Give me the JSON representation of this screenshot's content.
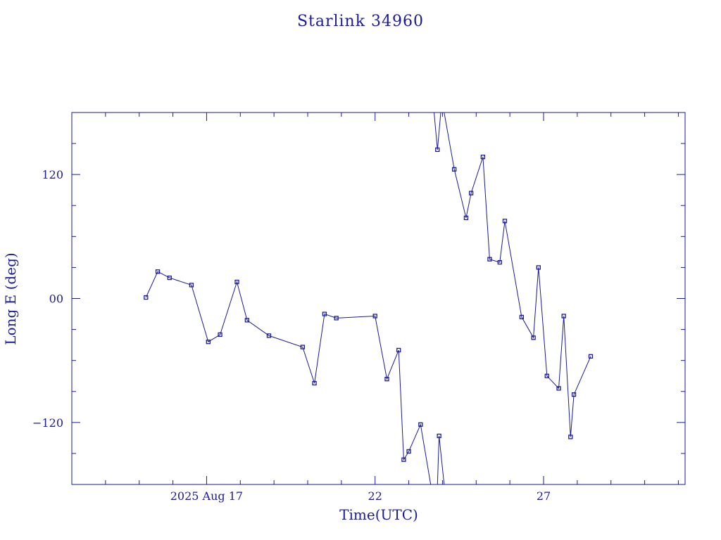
{
  "chart_data": {
    "type": "line",
    "title": "Starlink 34960",
    "xlabel": "Time(UTC)",
    "ylabel": "Long E (deg)",
    "x_tick_labels": [
      {
        "day": 17,
        "label": "2025 Aug 17"
      },
      {
        "day": 22,
        "label": "22"
      },
      {
        "day": 27,
        "label": "27"
      }
    ],
    "y_tick_labels": [
      {
        "value": 120,
        "label": "120"
      },
      {
        "value": 0,
        "label": "00"
      },
      {
        "value": -120,
        "label": "−120"
      }
    ],
    "xlim": [
      13.0,
      31.2
    ],
    "ylim": [
      -180,
      180
    ],
    "x_unit": "day of August 2025 (UTC)",
    "color": "#1a1a9a",
    "grid": false,
    "series": [
      {
        "points": [
          [
            15.2,
            1
          ],
          [
            15.55,
            26
          ],
          [
            15.9,
            20
          ],
          [
            16.55,
            13
          ],
          [
            17.05,
            -42
          ],
          [
            17.4,
            -35
          ],
          [
            17.9,
            16
          ],
          [
            18.2,
            -21
          ],
          [
            18.85,
            -36
          ],
          [
            19.85,
            -47
          ],
          [
            20.2,
            -82
          ],
          [
            20.5,
            -15
          ],
          [
            20.85,
            -19
          ],
          [
            22.0,
            -17
          ],
          [
            22.35,
            -78
          ],
          [
            22.7,
            -50
          ],
          [
            22.85,
            -156
          ],
          [
            23.0,
            -148
          ],
          [
            23.35,
            -122
          ],
          [
            23.65,
            -180
          ]
        ]
      },
      {
        "points": [
          [
            23.75,
            180
          ],
          [
            23.85,
            144
          ],
          [
            23.95,
            180
          ]
        ]
      },
      {
        "points": [
          [
            23.85,
            -180
          ],
          [
            23.9,
            -133
          ],
          [
            24.05,
            -180
          ]
        ]
      },
      {
        "points": [
          [
            24.05,
            180
          ],
          [
            24.35,
            125
          ],
          [
            24.7,
            78
          ],
          [
            24.85,
            102
          ],
          [
            25.2,
            137
          ],
          [
            25.4,
            38
          ],
          [
            25.7,
            35
          ],
          [
            25.85,
            75
          ],
          [
            26.35,
            -18
          ],
          [
            26.7,
            -38
          ],
          [
            26.85,
            30
          ],
          [
            27.1,
            -75
          ],
          [
            27.45,
            -87
          ],
          [
            27.6,
            -17
          ],
          [
            27.8,
            -134
          ],
          [
            27.9,
            -93
          ],
          [
            28.4,
            -56
          ]
        ]
      }
    ]
  }
}
